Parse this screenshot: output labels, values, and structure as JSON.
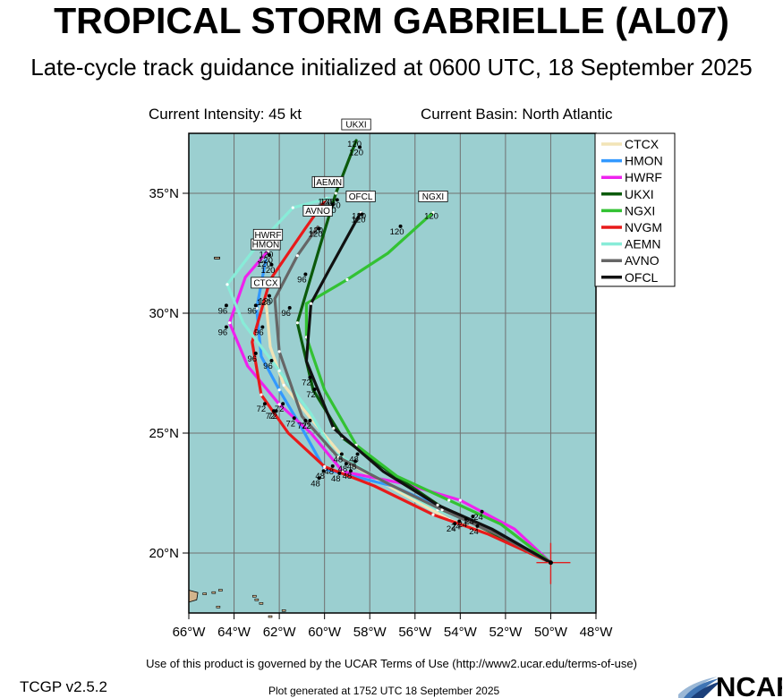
{
  "header": {
    "title": "TROPICAL STORM GABRIELLE (AL07)",
    "subtitle": "Late-cycle track guidance initialized at 0600 UTC, 18 September 2025",
    "intensity": "Current Intensity: 45 kt",
    "basin": "Current Basin: North Atlantic"
  },
  "footer": {
    "terms": "Use of this product is governed by the UCAR Terms of Use (http://www2.ucar.edu/terms-of-use)",
    "version": "TCGP v2.5.2",
    "generated": "Plot generated at 1752 UTC   18 September 2025",
    "logo_text": "NCAR"
  },
  "colors": {
    "ocean": "#9bcfd0",
    "land": "#d2b48c",
    "grid": "#707070",
    "current_position": "#e02020"
  },
  "map": {
    "lon_range": [
      -66,
      -48
    ],
    "lat_range": [
      17.5,
      37.5
    ],
    "lon_ticks": [
      -66,
      -64,
      -62,
      -60,
      -58,
      -56,
      -54,
      -52,
      -50,
      -48
    ],
    "lat_ticks": [
      20,
      25,
      30,
      35
    ],
    "lon_labels": [
      "66°W",
      "64°W",
      "62°W",
      "60°W",
      "58°W",
      "56°W",
      "54°W",
      "52°W",
      "50°W",
      "48°W"
    ],
    "lat_labels": [
      "20°N",
      "25°N",
      "30°N",
      "35°N"
    ],
    "current_position": [
      -50.0,
      19.6
    ]
  },
  "chart_data": {
    "type": "line",
    "x_axis": "longitude",
    "y_axis": "latitude",
    "legend_placement": "top-right",
    "series": [
      {
        "name": "CTCX",
        "color": "#f2e4b6",
        "end_label": "CTCX",
        "end_hour": "120",
        "points": [
          [
            -50.0,
            19.6
          ],
          [
            -52.2,
            20.6
          ],
          [
            -54.5,
            21.4
          ],
          [
            -56.8,
            22.6
          ],
          [
            -59.0,
            23.8
          ],
          [
            -60.6,
            25.6
          ],
          [
            -61.8,
            27.0
          ],
          [
            -62.4,
            28.6
          ],
          [
            -62.6,
            30.6
          ]
        ]
      },
      {
        "name": "HMON",
        "color": "#3399ff",
        "end_label": "HMON",
        "end_hour": "120",
        "points": [
          [
            -50.0,
            19.6
          ],
          [
            -52.4,
            20.9
          ],
          [
            -54.6,
            21.8
          ],
          [
            -57.0,
            22.8
          ],
          [
            -60.0,
            23.5
          ],
          [
            -61.0,
            25.2
          ],
          [
            -62.0,
            26.8
          ],
          [
            -62.8,
            28.2
          ],
          [
            -63.0,
            30.2
          ],
          [
            -62.6,
            32.2
          ]
        ]
      },
      {
        "name": "HWRF",
        "color": "#ee22ee",
        "end_label": "HWRF",
        "end_hour": "120",
        "points": [
          [
            -50.0,
            19.6
          ],
          [
            -51.6,
            21.0
          ],
          [
            -54.0,
            22.2
          ],
          [
            -56.5,
            22.9
          ],
          [
            -59.2,
            23.4
          ],
          [
            -60.6,
            25.0
          ],
          [
            -62.0,
            26.2
          ],
          [
            -63.4,
            27.8
          ],
          [
            -64.2,
            29.6
          ],
          [
            -63.5,
            31.5
          ],
          [
            -62.5,
            32.6
          ]
        ]
      },
      {
        "name": "UKXI",
        "color": "#0b5a0b",
        "end_label": "UKXI",
        "end_hour": "120",
        "points": [
          [
            -50.0,
            19.6
          ],
          [
            -52.5,
            20.8
          ],
          [
            -54.8,
            21.9
          ],
          [
            -57.0,
            23.3
          ],
          [
            -59.2,
            24.8
          ],
          [
            -60.5,
            26.8
          ],
          [
            -61.2,
            29.6
          ],
          [
            -60.2,
            32.8
          ],
          [
            -59.5,
            35.0
          ],
          [
            -58.6,
            37.2
          ]
        ]
      },
      {
        "name": "NGXI",
        "color": "#33c233",
        "end_label": "NGXI",
        "end_hour": "120",
        "points": [
          [
            -50.0,
            19.6
          ],
          [
            -52.2,
            21.2
          ],
          [
            -54.5,
            22.2
          ],
          [
            -56.8,
            23.2
          ],
          [
            -58.6,
            24.5
          ],
          [
            -60.0,
            26.8
          ],
          [
            -60.8,
            29.0
          ],
          [
            -60.8,
            30.4
          ],
          [
            -59.0,
            31.4
          ],
          [
            -57.2,
            32.5
          ],
          [
            -55.2,
            34.2
          ]
        ]
      },
      {
        "name": "NVGM",
        "color": "#e81a1a",
        "end_label": "NVGM",
        "end_hour": "120",
        "points": [
          [
            -50.0,
            19.6
          ],
          [
            -52.8,
            20.8
          ],
          [
            -55.2,
            21.6
          ],
          [
            -57.8,
            22.8
          ],
          [
            -60.0,
            23.6
          ],
          [
            -61.6,
            25.0
          ],
          [
            -62.8,
            26.6
          ],
          [
            -63.2,
            28.8
          ],
          [
            -62.4,
            31.4
          ],
          [
            -60.8,
            33.6
          ],
          [
            -59.9,
            34.8
          ]
        ]
      },
      {
        "name": "AEMN",
        "color": "#88ecd8",
        "end_label": "AEMN",
        "end_hour": "120",
        "points": [
          [
            -50.0,
            19.6
          ],
          [
            -52.6,
            21.0
          ],
          [
            -55.0,
            21.8
          ],
          [
            -57.4,
            23.0
          ],
          [
            -59.6,
            24.2
          ],
          [
            -60.6,
            25.8
          ],
          [
            -62.0,
            27.6
          ],
          [
            -63.6,
            29.6
          ],
          [
            -64.3,
            31.2
          ],
          [
            -63.0,
            32.8
          ],
          [
            -61.4,
            34.4
          ],
          [
            -59.8,
            34.8
          ]
        ]
      },
      {
        "name": "AVNO",
        "color": "#666666",
        "end_label": "AVNO",
        "end_hour": "120",
        "points": [
          [
            -50.0,
            19.6
          ],
          [
            -52.4,
            20.8
          ],
          [
            -54.8,
            21.8
          ],
          [
            -57.2,
            22.9
          ],
          [
            -59.4,
            24.0
          ],
          [
            -61.0,
            25.7
          ],
          [
            -62.0,
            28.4
          ],
          [
            -62.2,
            30.6
          ],
          [
            -61.2,
            32.4
          ],
          [
            -60.3,
            33.6
          ]
        ]
      },
      {
        "name": "OFCL",
        "color": "#111111",
        "end_label": "OFCL",
        "end_hour": "120",
        "points": [
          [
            -50.0,
            19.6
          ],
          [
            -52.6,
            21.0
          ],
          [
            -55.0,
            22.0
          ],
          [
            -57.4,
            23.4
          ],
          [
            -59.6,
            25.2
          ],
          [
            -60.8,
            28.0
          ],
          [
            -60.6,
            30.4
          ],
          [
            -59.8,
            31.8
          ],
          [
            -58.4,
            34.2
          ]
        ]
      }
    ],
    "hour_marks": [
      {
        "hour": "24",
        "positions": [
          [
            -53.2,
            21.5
          ],
          [
            -53.6,
            21.3
          ],
          [
            -53.9,
            21.2
          ],
          [
            -54.2,
            21.1
          ],
          [
            -54.4,
            21.0
          ],
          [
            -53.4,
            20.9
          ]
        ]
      },
      {
        "hour": "48",
        "positions": [
          [
            -58.8,
            23.6
          ],
          [
            -59.0,
            23.2
          ],
          [
            -59.2,
            23.5
          ],
          [
            -59.5,
            23.1
          ],
          [
            -59.8,
            23.4
          ],
          [
            -60.2,
            23.2
          ],
          [
            -60.4,
            22.9
          ],
          [
            -59.4,
            23.9
          ],
          [
            -58.7,
            23.9
          ]
        ]
      },
      {
        "hour": "72",
        "positions": [
          [
            -60.8,
            27.1
          ],
          [
            -60.6,
            26.6
          ],
          [
            -61.5,
            25.4
          ],
          [
            -61.0,
            25.3
          ],
          [
            -60.8,
            25.3
          ],
          [
            -62.0,
            26.0
          ],
          [
            -62.8,
            26.0
          ],
          [
            -62.4,
            25.7
          ],
          [
            -62.3,
            25.7
          ]
        ]
      },
      {
        "hour": "96",
        "positions": [
          [
            -63.2,
            30.1
          ],
          [
            -64.5,
            30.1
          ],
          [
            -64.5,
            29.2
          ],
          [
            -63.2,
            28.1
          ],
          [
            -62.9,
            29.2
          ],
          [
            -62.5,
            27.8
          ],
          [
            -61.7,
            30.0
          ],
          [
            -61.0,
            31.4
          ]
        ]
      },
      {
        "hour": "120",
        "positions": [
          [
            -62.6,
            30.5
          ],
          [
            -62.6,
            32.2
          ],
          [
            -62.5,
            31.8
          ],
          [
            -59.6,
            34.5
          ],
          [
            -59.8,
            34.3
          ],
          [
            -60.4,
            33.3
          ],
          [
            -58.5,
            33.9
          ],
          [
            -56.8,
            33.4
          ],
          [
            -58.6,
            36.7
          ]
        ]
      }
    ]
  }
}
